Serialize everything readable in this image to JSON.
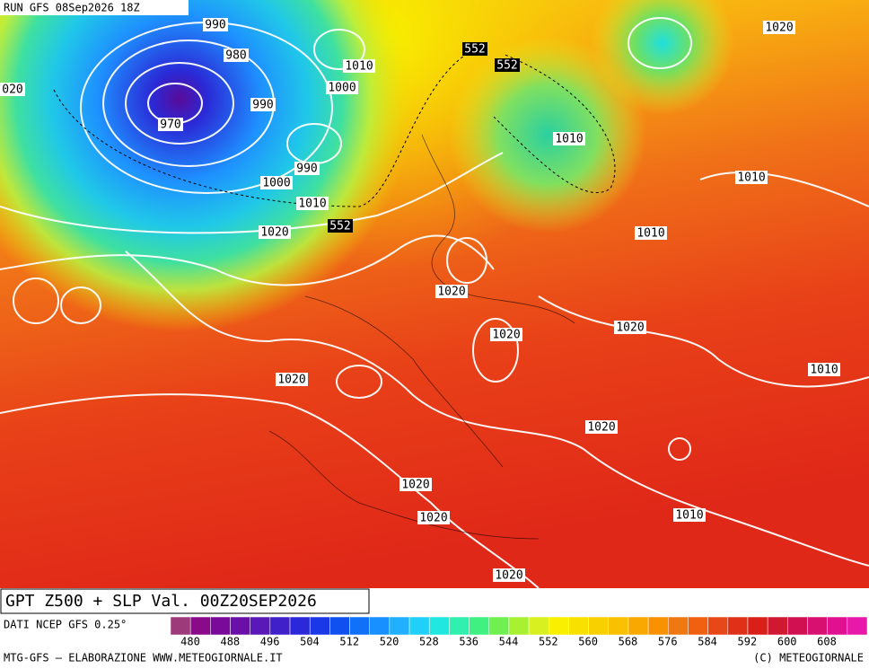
{
  "header": {
    "run": "RUN GFS 08Sep2026 18Z"
  },
  "map": {
    "isobar_labels": [
      "990",
      "980",
      "1010",
      "1000",
      "990",
      "970",
      "990",
      "1000",
      "1010",
      "1020",
      "1010",
      "1020",
      "1010",
      "1010",
      "1020",
      "1020",
      "1020",
      "1010",
      "1020",
      "1020",
      "1020",
      "1020",
      "1010",
      "1020",
      "020"
    ],
    "height_labels": [
      "552",
      "552",
      "552"
    ]
  },
  "footer": {
    "title": "GPT Z500 + SLP Val. 00Z20SEP2026",
    "source": "DATI NCEP GFS 0.25°",
    "credit": "MTG-GFS — ELABORAZIONE WWW.METEOGIORNALE.IT",
    "copyright": "(C) METEOGIORNALE"
  },
  "colorbar": {
    "ticks": [
      480,
      488,
      496,
      504,
      512,
      520,
      528,
      536,
      544,
      552,
      560,
      568,
      576,
      584,
      592,
      600,
      608
    ]
  }
}
